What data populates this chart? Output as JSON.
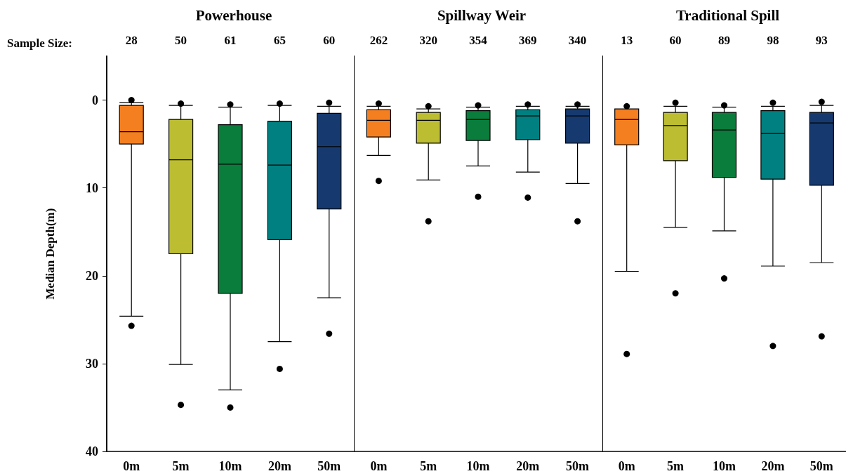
{
  "chart_data": [
    {
      "type": "box",
      "title": "Powerhouse",
      "ylabel": "Median Depth(m)",
      "categories": [
        "0m",
        "5m",
        "10m",
        "20m",
        "50m"
      ],
      "colors": [
        "#f47f20",
        "#bcbd31",
        "#0a7c3c",
        "#008080",
        "#163a70"
      ],
      "ylim": [
        40,
        -5
      ],
      "yticks": [
        0,
        10,
        20,
        30,
        40
      ],
      "grid": false,
      "annotations": [
        "Sample Size:",
        "28",
        "50",
        "61",
        "65",
        "60"
      ],
      "boxes": [
        {
          "low": 0.3,
          "q1": 0.6,
          "median": 3.6,
          "q3": 5.0,
          "high": 24.6,
          "outliers": [
            0,
            25.7
          ]
        },
        {
          "low": 0.6,
          "q1": 2.2,
          "median": 6.8,
          "q3": 17.5,
          "high": 30.1,
          "outliers": [
            0.4,
            34.7
          ]
        },
        {
          "low": 0.8,
          "q1": 2.8,
          "median": 7.3,
          "q3": 22.0,
          "high": 33.0,
          "outliers": [
            0.5,
            35.0
          ]
        },
        {
          "low": 0.6,
          "q1": 2.4,
          "median": 7.4,
          "q3": 15.9,
          "high": 27.5,
          "outliers": [
            0.4,
            30.6
          ]
        },
        {
          "low": 0.7,
          "q1": 1.5,
          "median": 5.3,
          "q3": 12.4,
          "high": 22.5,
          "outliers": [
            0.3,
            26.6
          ]
        }
      ]
    },
    {
      "type": "box",
      "title": "Spillway Weir",
      "categories": [
        "0m",
        "5m",
        "10m",
        "20m",
        "50m"
      ],
      "colors": [
        "#f47f20",
        "#bcbd31",
        "#0a7c3c",
        "#008080",
        "#163a70"
      ],
      "ylim": [
        40,
        -5
      ],
      "yticks": [
        0,
        10,
        20,
        30,
        40
      ],
      "grid": false,
      "tick_labels": "x",
      "annotations": [
        "262",
        "320",
        "354",
        "369",
        "340"
      ],
      "boxes": [
        {
          "low": 0.7,
          "q1": 1.1,
          "median": 2.3,
          "q3": 4.2,
          "high": 6.3,
          "outliers": [
            0.4,
            9.2
          ]
        },
        {
          "low": 1.0,
          "q1": 1.4,
          "median": 2.3,
          "q3": 4.9,
          "high": 9.1,
          "outliers": [
            0.7,
            13.8
          ]
        },
        {
          "low": 0.8,
          "q1": 1.2,
          "median": 2.2,
          "q3": 4.6,
          "high": 7.5,
          "outliers": [
            0.6,
            11.0
          ]
        },
        {
          "low": 0.7,
          "q1": 1.1,
          "median": 1.8,
          "q3": 4.5,
          "high": 8.2,
          "outliers": [
            0.5,
            11.1
          ]
        },
        {
          "low": 0.7,
          "q1": 1.0,
          "median": 1.8,
          "q3": 4.9,
          "high": 9.5,
          "outliers": [
            0.5,
            13.8
          ]
        }
      ]
    },
    {
      "type": "box",
      "title": "Traditional Spill",
      "categories": [
        "0m",
        "5m",
        "10m",
        "20m",
        "50m"
      ],
      "colors": [
        "#f47f20",
        "#bcbd31",
        "#0a7c3c",
        "#008080",
        "#163a70"
      ],
      "ylim": [
        40,
        -5
      ],
      "yticks": [
        0,
        10,
        20,
        30,
        40
      ],
      "grid": false,
      "tick_labels": "x",
      "annotations": [
        "13",
        "60",
        "89",
        "98",
        "93"
      ],
      "boxes": [
        {
          "low": 1.0,
          "q1": 1.0,
          "median": 2.2,
          "q3": 5.1,
          "high": 19.5,
          "outliers": [
            0.7,
            28.9
          ]
        },
        {
          "low": 0.7,
          "q1": 1.4,
          "median": 2.9,
          "q3": 6.9,
          "high": 14.5,
          "outliers": [
            0.3,
            22.0
          ]
        },
        {
          "low": 0.8,
          "q1": 1.4,
          "median": 3.4,
          "q3": 8.8,
          "high": 14.9,
          "outliers": [
            0.6,
            20.3
          ]
        },
        {
          "low": 0.7,
          "q1": 1.2,
          "median": 3.8,
          "q3": 9.0,
          "high": 18.9,
          "outliers": [
            0.3,
            28.0
          ]
        },
        {
          "low": 0.6,
          "q1": 1.4,
          "median": 2.6,
          "q3": 9.7,
          "high": 18.5,
          "outliers": [
            0.2,
            26.9
          ]
        }
      ]
    }
  ]
}
